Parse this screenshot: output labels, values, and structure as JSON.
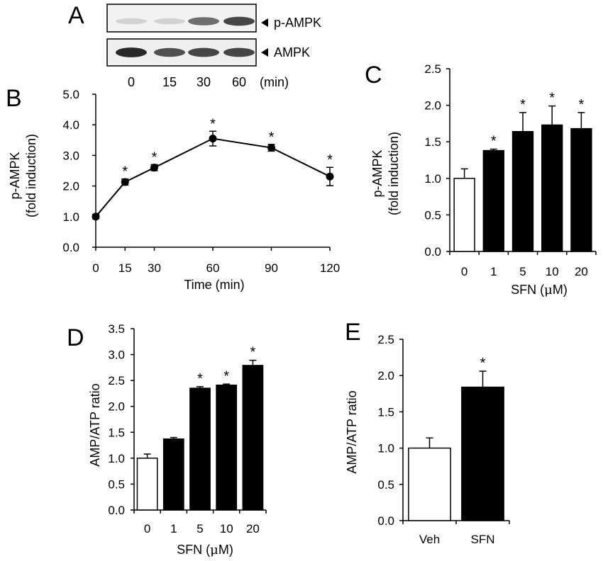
{
  "panels": {
    "a": {
      "letter": "A"
    },
    "b": {
      "letter": "B"
    },
    "c": {
      "letter": "C"
    },
    "d": {
      "letter": "D"
    },
    "e": {
      "letter": "E"
    }
  },
  "blot": {
    "rows": [
      {
        "name": "p-AMPK",
        "band_intensity": [
          0.1,
          0.1,
          0.6,
          0.8
        ]
      },
      {
        "name": "AMPK",
        "band_intensity": [
          0.95,
          0.75,
          0.8,
          0.8
        ]
      }
    ],
    "lanes": [
      "0",
      "15",
      "30",
      "60"
    ],
    "unit": "(min)"
  },
  "chart_data": [
    {
      "id": "b",
      "type": "line",
      "x": [
        0,
        15,
        30,
        60,
        90,
        120
      ],
      "y": [
        1.0,
        2.13,
        2.6,
        3.55,
        3.25,
        2.31
      ],
      "err": [
        0.07,
        0.1,
        0.1,
        0.24,
        0.11,
        0.3
      ],
      "significant": [
        false,
        true,
        true,
        true,
        true,
        true
      ],
      "x_ticks": [
        "0",
        "15",
        "30",
        "60",
        "90",
        "120"
      ],
      "y_ticks": [
        "0.0",
        "1.0",
        "2.0",
        "3.0",
        "4.0",
        "5.0"
      ],
      "ylim": [
        0,
        5
      ],
      "xlim": [
        0,
        120
      ],
      "xlabel": "Time (min)",
      "ylabel_line1": "p-AMPK",
      "ylabel_line2": "(fold induction)",
      "marker": "*"
    },
    {
      "id": "c",
      "type": "bar",
      "categories": [
        "0",
        "1",
        "5",
        "10",
        "20"
      ],
      "values": [
        1.0,
        1.38,
        1.64,
        1.73,
        1.68
      ],
      "err": [
        0.13,
        0.02,
        0.26,
        0.26,
        0.22
      ],
      "fill": [
        "#ffffff",
        "#000000",
        "#000000",
        "#000000",
        "#000000"
      ],
      "significant": [
        false,
        true,
        true,
        true,
        true
      ],
      "y_ticks": [
        "0.0",
        "0.5",
        "1.0",
        "1.5",
        "2.0",
        "2.5"
      ],
      "ylim": [
        0,
        2.5
      ],
      "xlabel_prefix": "SFN  (",
      "xlabel_mu": "μ",
      "xlabel_suffix": "M)",
      "ylabel_line1": "p-AMPK",
      "ylabel_line2": "(fold induction)",
      "marker": "*"
    },
    {
      "id": "d",
      "type": "bar",
      "categories": [
        "0",
        "1",
        "5",
        "10",
        "20"
      ],
      "values": [
        1.0,
        1.37,
        2.35,
        2.41,
        2.79
      ],
      "err": [
        0.08,
        0.03,
        0.03,
        0.02,
        0.1
      ],
      "fill": [
        "#ffffff",
        "#000000",
        "#000000",
        "#000000",
        "#000000"
      ],
      "significant": [
        false,
        false,
        true,
        true,
        true
      ],
      "y_ticks": [
        "0.0",
        "0.5",
        "1.0",
        "1.5",
        "2.0",
        "2.5",
        "3.0",
        "3.5"
      ],
      "ylim": [
        0,
        3.5
      ],
      "xlabel_prefix": "SFN (",
      "xlabel_mu": "μ",
      "xlabel_suffix": "M)",
      "ylabel_line1": "AMP/ATP ratio",
      "marker": "*"
    },
    {
      "id": "e",
      "type": "bar",
      "categories": [
        "Veh",
        "SFN"
      ],
      "values": [
        1.0,
        1.84
      ],
      "err": [
        0.14,
        0.22
      ],
      "fill": [
        "#ffffff",
        "#000000"
      ],
      "significant": [
        false,
        true
      ],
      "y_ticks": [
        "0.0",
        "0.5",
        "1.0",
        "1.5",
        "2.0",
        "2.5"
      ],
      "ylim": [
        0,
        2.5
      ],
      "ylabel_line1": "AMP/ATP ratio",
      "marker": "*"
    }
  ]
}
